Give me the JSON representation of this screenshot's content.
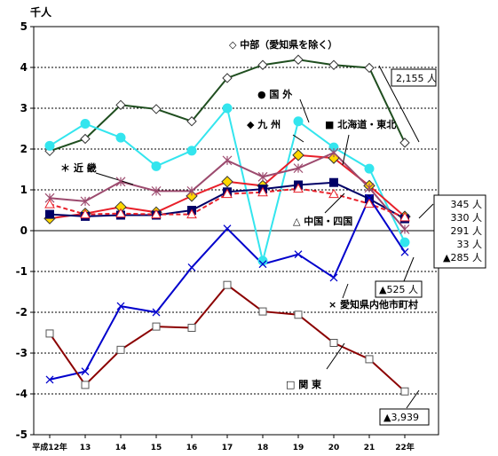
{
  "chart_data": {
    "type": "line",
    "ylabel": "千人",
    "ylim": [
      -5,
      5
    ],
    "yticks": [
      "5",
      "4",
      "3",
      "2",
      "1",
      "0",
      "-1",
      "-2",
      "-3",
      "-4",
      "-5"
    ],
    "categories": [
      "平成12年",
      "13",
      "14",
      "15",
      "16",
      "17",
      "18",
      "19",
      "20",
      "21",
      "22年"
    ],
    "grid": true,
    "series": [
      {
        "name": "中部（愛知県を除く）",
        "color": "#1f4e1f",
        "marker": "diamond-open",
        "dash": false,
        "values": [
          1.95,
          2.25,
          3.08,
          2.98,
          2.68,
          3.74,
          4.06,
          4.19,
          4.06,
          3.99,
          2.155
        ]
      },
      {
        "name": "国外",
        "color": "#33e5ee",
        "marker": "circle",
        "dash": false,
        "values": [
          2.08,
          2.62,
          2.28,
          1.58,
          1.96,
          3.0,
          -0.74,
          2.68,
          2.04,
          1.52,
          -0.285
        ]
      },
      {
        "name": "九州",
        "color": "#e8202a",
        "marker": "diamond-yellow",
        "dash": false,
        "values": [
          0.3,
          0.42,
          0.58,
          0.45,
          0.85,
          1.2,
          1.1,
          1.85,
          1.78,
          1.1,
          0.345
        ]
      },
      {
        "name": "北海道・東北",
        "color": "#000066",
        "marker": "square",
        "dash": false,
        "values": [
          0.4,
          0.35,
          0.38,
          0.38,
          0.5,
          0.95,
          1.02,
          1.12,
          1.18,
          0.78,
          0.291
        ]
      },
      {
        "name": "近畿",
        "color": "#9c4a6e",
        "marker": "star",
        "dash": false,
        "values": [
          0.8,
          0.72,
          1.2,
          0.97,
          0.97,
          1.72,
          1.32,
          1.53,
          1.91,
          1.05,
          0.033
        ]
      },
      {
        "name": "中国・四国",
        "color": "#e8202a",
        "marker": "triangle-open",
        "dash": true,
        "values": [
          0.65,
          0.4,
          0.42,
          0.4,
          0.4,
          0.9,
          0.94,
          1.03,
          0.9,
          0.66,
          0.33
        ]
      },
      {
        "name": "愛知県内他市町村",
        "color": "#0000cc",
        "marker": "x",
        "dash": false,
        "values": [
          -3.65,
          -3.45,
          -1.85,
          -2.0,
          -0.9,
          0.05,
          -0.82,
          -0.58,
          -1.15,
          0.8,
          -0.525
        ]
      },
      {
        "name": "関東",
        "color": "#8b0000",
        "marker": "square-open",
        "dash": false,
        "values": [
          -2.52,
          -3.78,
          -2.92,
          -2.35,
          -2.38,
          -1.33,
          -1.98,
          -2.06,
          -2.75,
          -3.15,
          -3.939
        ]
      }
    ],
    "labels": {
      "chubu": "◇ 中部（愛知県を除く）",
      "kokugai": "● 国 外",
      "kyushu": "◆ 九 州",
      "hokkaido": "■ 北海道・東北",
      "kinki": "＊ 近 畿",
      "chugoku": "△ 中国・四国",
      "aichi": "× 愛知県内他市町村",
      "kanto": "□ 関 東"
    },
    "annotations": {
      "chubu_end": "2,155 人",
      "end_values": [
        "345 人",
        "330 人",
        "291 人",
        "33 人",
        "▲285 人"
      ],
      "aichi_end": "▲525 人",
      "kanto_end": "▲3,939"
    }
  }
}
